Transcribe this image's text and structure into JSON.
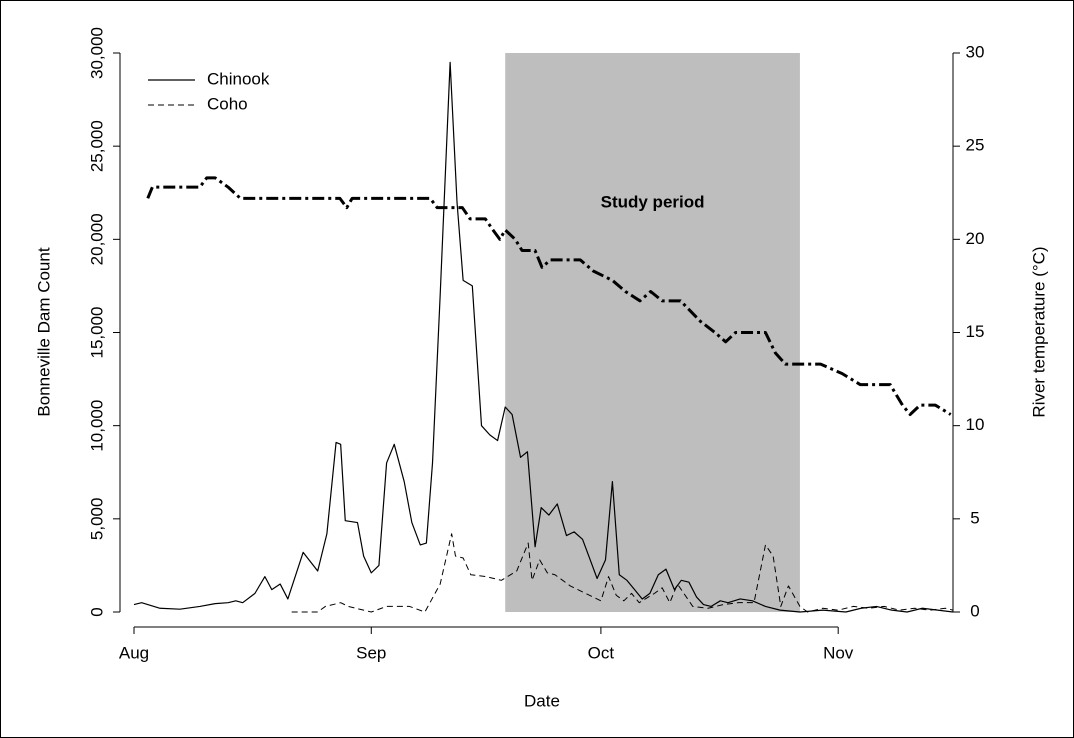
{
  "chart_data": {
    "type": "line",
    "x_label": "Date",
    "y_label": "Bonneville Dam Count",
    "y2_label": "River temperature (°C)",
    "xlim": [
      0,
      107
    ],
    "xticks": [
      {
        "value": 0,
        "label": "Aug"
      },
      {
        "value": 31,
        "label": "Sep"
      },
      {
        "value": 61,
        "label": "Oct"
      },
      {
        "value": 92,
        "label": "Nov"
      }
    ],
    "ylim": [
      0,
      30000
    ],
    "yticks": [
      0,
      {
        "value": 5000,
        "label": "5,000"
      },
      {
        "value": 10000,
        "label": "10,000"
      },
      {
        "value": 15000,
        "label": "15,000"
      },
      {
        "value": 20000,
        "label": "20,000"
      },
      {
        "value": 25000,
        "label": "25,000"
      },
      {
        "value": 30000,
        "label": "30,000"
      }
    ],
    "y2lim": [
      0,
      30
    ],
    "y2ticks": [
      0,
      5,
      10,
      15,
      20,
      25,
      30
    ],
    "legend": "top-left",
    "shaded_region": {
      "x": [
        48.5,
        87
      ],
      "color": "#bebebe",
      "label": "Study period"
    },
    "series": [
      {
        "name": "Chinook",
        "color": "#000000",
        "dash": "solid",
        "x": [
          0,
          1,
          3.4,
          6,
          8.6,
          10.6,
          12.3,
          13.3,
          14.2,
          15.8,
          17.1,
          18,
          19.1,
          20.1,
          22.1,
          24,
          25.2,
          26.4,
          27,
          27.6,
          29.2,
          30,
          31,
          32,
          33,
          34,
          35.3,
          36.3,
          37.4,
          38.2,
          39,
          40,
          41.3,
          42.2,
          43,
          44.2,
          45.4,
          46.5,
          47.5,
          48.5,
          49.4,
          50.5,
          51.4,
          52.4,
          53.2,
          54.2,
          55.3,
          56.5,
          57.5,
          58.6,
          59.6,
          60.5,
          61.6,
          62.5,
          63.4,
          64.4,
          65.4,
          66.4,
          67.4,
          68.5,
          69.5,
          70.6,
          71.5,
          72.5,
          73.5,
          74.4,
          75.4,
          76.6,
          77.6,
          79.2,
          80.8,
          82.5,
          84.4,
          87,
          90,
          93,
          95,
          97,
          99,
          101,
          103,
          105,
          107
        ],
        "values": [
          400,
          500,
          200,
          150,
          300,
          450,
          500,
          600,
          500,
          1000,
          1900,
          1200,
          1500,
          700,
          3200,
          2200,
          4200,
          9100,
          9000,
          4900,
          4800,
          3000,
          2100,
          2500,
          8000,
          9000,
          7000,
          4800,
          3600,
          3700,
          8000,
          17000,
          29500,
          22000,
          17800,
          17500,
          10000,
          9500,
          9200,
          11000,
          10600,
          8300,
          8600,
          3500,
          5600,
          5200,
          5800,
          4100,
          4300,
          3900,
          2800,
          1800,
          2800,
          7000,
          2000,
          1700,
          1200,
          700,
          1000,
          2000,
          2300,
          1200,
          1700,
          1600,
          800,
          400,
          300,
          600,
          500,
          700,
          600,
          300,
          100,
          0,
          100,
          0,
          200,
          300,
          100,
          0,
          200,
          100,
          0
        ]
      },
      {
        "name": "Coho",
        "color": "#000000",
        "dash": "dashed",
        "x": [
          20.6,
          24,
          25,
          27,
          28,
          31,
          33,
          36,
          38,
          40,
          41.5,
          42,
          43,
          44,
          46,
          48,
          50,
          51.5,
          52,
          53,
          54,
          55,
          57,
          59,
          61,
          62,
          63,
          64,
          65,
          66,
          68,
          69,
          70,
          71,
          73,
          75,
          77,
          79,
          81,
          82.5,
          83.5,
          84.5,
          85.5,
          87,
          88,
          90,
          92,
          94,
          96,
          98,
          100,
          102,
          104,
          106,
          107
        ],
        "values": [
          0,
          0,
          300,
          500,
          300,
          0,
          300,
          300,
          0,
          1500,
          4200,
          3000,
          2900,
          2000,
          1900,
          1700,
          2200,
          3700,
          1700,
          2800,
          2100,
          2000,
          1400,
          1000,
          600,
          1900,
          900,
          600,
          1000,
          500,
          1000,
          1300,
          500,
          1500,
          300,
          200,
          400,
          500,
          500,
          3600,
          3000,
          300,
          1400,
          300,
          0,
          200,
          100,
          300,
          200,
          300,
          100,
          200,
          100,
          200,
          100
        ]
      },
      {
        "name": "River temperature",
        "color": "#000000",
        "dash": "dashdot",
        "axis": "y2",
        "x": [
          1.8,
          2.4,
          3.4,
          6,
          8.6,
          9.5,
          10.6,
          12.3,
          13.9,
          16.5,
          20.4,
          26.9,
          27.8,
          28.5,
          37.4,
          38.7,
          39.6,
          42.9,
          43.9,
          45.9,
          46.9,
          47.8,
          48.5,
          49.8,
          50.7,
          52.4,
          53.3,
          54.4,
          58.3,
          60,
          62.5,
          64.2,
          66.1,
          67.5,
          69,
          71.4,
          74,
          75.9,
          77.3,
          78.6,
          82.5,
          83.8,
          85.1,
          89.7,
          92.5,
          94.9,
          98.8,
          100.4,
          101.4,
          102.7,
          104.7,
          106.7
        ],
        "values": [
          22.2,
          22.8,
          22.8,
          22.8,
          22.8,
          23.3,
          23.3,
          22.8,
          22.2,
          22.2,
          22.2,
          22.2,
          21.7,
          22.2,
          22.2,
          22.2,
          21.7,
          21.7,
          21.1,
          21.1,
          20.5,
          20.0,
          20.5,
          20.0,
          19.4,
          19.4,
          18.5,
          18.9,
          18.9,
          18.3,
          17.8,
          17.2,
          16.7,
          17.2,
          16.7,
          16.7,
          15.6,
          15.0,
          14.5,
          15.0,
          15.0,
          13.9,
          13.3,
          13.3,
          12.8,
          12.2,
          12.2,
          11.1,
          10.6,
          11.1,
          11.1,
          10.6
        ]
      }
    ]
  }
}
